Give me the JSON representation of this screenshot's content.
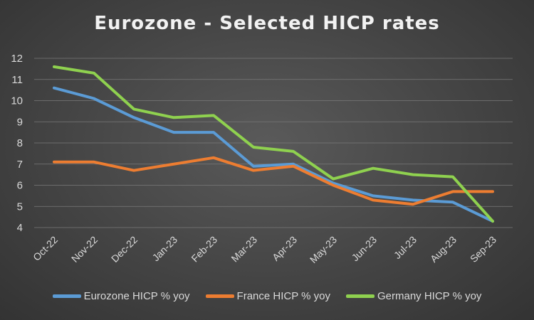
{
  "chart_data": {
    "type": "line",
    "title": "Eurozone - Selected HICP rates",
    "xlabel": "",
    "ylabel": "",
    "categories": [
      "Oct-22",
      "Nov-22",
      "Dec-22",
      "Jan-23",
      "Feb-23",
      "Mar-23",
      "Apr-23",
      "May-23",
      "Jun-23",
      "Jul-23",
      "Aug-23",
      "Sep-23"
    ],
    "ylim": [
      4,
      12
    ],
    "yticks": [
      4,
      5,
      6,
      7,
      8,
      9,
      10,
      11,
      12
    ],
    "grid": true,
    "legend": "bottom",
    "series": [
      {
        "name": "Eurozone HICP % yoy",
        "color": "#5b9bd5",
        "values": [
          10.6,
          10.1,
          9.2,
          8.5,
          8.5,
          6.9,
          7.0,
          6.1,
          5.5,
          5.3,
          5.2,
          4.3
        ]
      },
      {
        "name": "France HICP % yoy",
        "color": "#ed7d31",
        "values": [
          7.1,
          7.1,
          6.7,
          7.0,
          7.3,
          6.7,
          6.9,
          6.0,
          5.3,
          5.1,
          5.7,
          5.7
        ]
      },
      {
        "name": "Germany HICP % yoy",
        "color": "#8fd14f",
        "values": [
          11.6,
          11.3,
          9.6,
          9.2,
          9.3,
          7.8,
          7.6,
          6.3,
          6.8,
          6.5,
          6.4,
          4.3
        ]
      }
    ]
  }
}
